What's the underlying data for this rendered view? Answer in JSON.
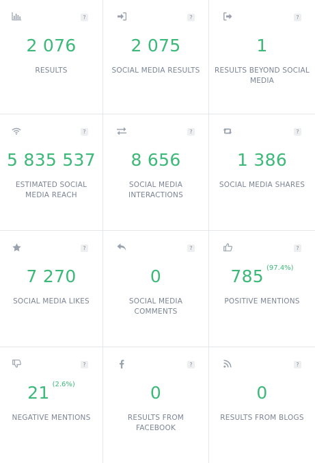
{
  "accent_color": "#3cb878",
  "label_color": "#7b8494",
  "icon_color": "#9aa2ad",
  "help_label": "?",
  "cards": [
    {
      "icon": "bar-chart-icon",
      "value": "2 076",
      "percent": "",
      "label": "RESULTS"
    },
    {
      "icon": "sign-in-icon",
      "value": "2 075",
      "percent": "",
      "label": "SOCIAL MEDIA RESULTS"
    },
    {
      "icon": "sign-out-icon",
      "value": "1",
      "percent": "",
      "label": "RESULTS BEYOND SOCIAL MEDIA"
    },
    {
      "icon": "wifi-icon",
      "value": "5 835 537",
      "percent": "",
      "label": "ESTIMATED SOCIAL MEDIA REACH"
    },
    {
      "icon": "exchange-icon",
      "value": "8 656",
      "percent": "",
      "label": "SOCIAL MEDIA INTERACTIONS"
    },
    {
      "icon": "retweet-icon",
      "value": "1 386",
      "percent": "",
      "label": "SOCIAL MEDIA SHARES"
    },
    {
      "icon": "star-icon",
      "value": "7 270",
      "percent": "",
      "label": "SOCIAL MEDIA LIKES"
    },
    {
      "icon": "reply-icon",
      "value": "0",
      "percent": "",
      "label": "SOCIAL MEDIA COMMENTS"
    },
    {
      "icon": "thumbs-up-icon",
      "value": "785",
      "percent": "(97.4%)",
      "label": "POSITIVE MENTIONS"
    },
    {
      "icon": "thumbs-down-icon",
      "value": "21",
      "percent": "(2.6%)",
      "label": "NEGATIVE MENTIONS"
    },
    {
      "icon": "facebook-icon",
      "value": "0",
      "percent": "",
      "label": "RESULTS FROM FACEBOOK"
    },
    {
      "icon": "rss-icon",
      "value": "0",
      "percent": "",
      "label": "RESULTS FROM BLOGS"
    }
  ]
}
